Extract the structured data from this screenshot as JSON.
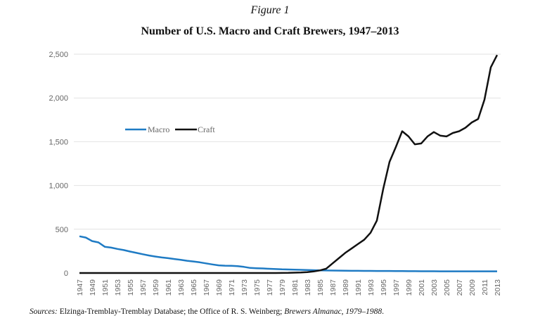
{
  "figure_label": "Figure 1",
  "sources_prefix": "Sources:",
  "sources_text": " Elzinga-Tremblay-Tremblay Database; the Office of R. S. Weinberg; ",
  "sources_italic": "Brewers Almanac, 1979–1988",
  "sources_suffix": ".",
  "chart_data": {
    "type": "line",
    "title": "Number of U.S. Macro and Craft Brewers, 1947–2013",
    "xlabel": "",
    "ylabel": "",
    "ylim": [
      0,
      2500
    ],
    "yticks": [
      "0",
      "500",
      "1,000",
      "1,500",
      "2,000",
      "2,500"
    ],
    "ytick_values": [
      0,
      500,
      1000,
      1500,
      2000,
      2500
    ],
    "grid": true,
    "legend": "upper-left, inside plot",
    "x": [
      1947,
      1948,
      1949,
      1950,
      1951,
      1952,
      1953,
      1954,
      1955,
      1956,
      1957,
      1958,
      1959,
      1960,
      1961,
      1962,
      1963,
      1964,
      1965,
      1966,
      1967,
      1968,
      1969,
      1970,
      1971,
      1972,
      1973,
      1974,
      1975,
      1976,
      1977,
      1978,
      1979,
      1980,
      1981,
      1982,
      1983,
      1984,
      1985,
      1986,
      1987,
      1988,
      1989,
      1990,
      1991,
      1992,
      1993,
      1994,
      1995,
      1996,
      1997,
      1998,
      1999,
      2000,
      2001,
      2002,
      2003,
      2004,
      2005,
      2006,
      2007,
      2008,
      2009,
      2010,
      2011,
      2012,
      2013
    ],
    "xtick_labels": [
      "1947",
      "1949",
      "1951",
      "1953",
      "1955",
      "1957",
      "1959",
      "1961",
      "1963",
      "1965",
      "1967",
      "1969",
      "1971",
      "1973",
      "1975",
      "1977",
      "1979",
      "1981",
      "1983",
      "1985",
      "1987",
      "1989",
      "1991",
      "1993",
      "1995",
      "1997",
      "1999",
      "2001",
      "2003",
      "2005",
      "2007",
      "2009",
      "2011",
      "2013"
    ],
    "series": [
      {
        "name": "Macro",
        "color": "#1f7bc4",
        "values": [
          420,
          405,
          365,
          350,
          300,
          290,
          275,
          262,
          245,
          230,
          215,
          200,
          188,
          178,
          170,
          160,
          150,
          140,
          132,
          122,
          110,
          98,
          88,
          84,
          82,
          78,
          70,
          58,
          55,
          52,
          48,
          45,
          42,
          40,
          38,
          36,
          34,
          32,
          30,
          29,
          28,
          27,
          26,
          25,
          25,
          24,
          24,
          23,
          23,
          23,
          22,
          22,
          21,
          21,
          20,
          20,
          20,
          19,
          19,
          19,
          19,
          19,
          19,
          19,
          19,
          19,
          19
        ]
      },
      {
        "name": "Craft",
        "color": "#111111",
        "values": [
          0,
          0,
          0,
          0,
          0,
          0,
          0,
          0,
          0,
          0,
          0,
          0,
          0,
          0,
          0,
          0,
          0,
          0,
          0,
          0,
          0,
          0,
          0,
          0,
          0,
          0,
          0,
          0,
          0,
          0,
          0,
          0,
          1,
          2,
          4,
          6,
          10,
          18,
          30,
          50,
          110,
          170,
          230,
          280,
          330,
          380,
          460,
          600,
          960,
          1270,
          1440,
          1620,
          1560,
          1470,
          1480,
          1560,
          1610,
          1570,
          1560,
          1600,
          1620,
          1660,
          1720,
          1760,
          1980,
          2350,
          2490
        ]
      }
    ]
  }
}
